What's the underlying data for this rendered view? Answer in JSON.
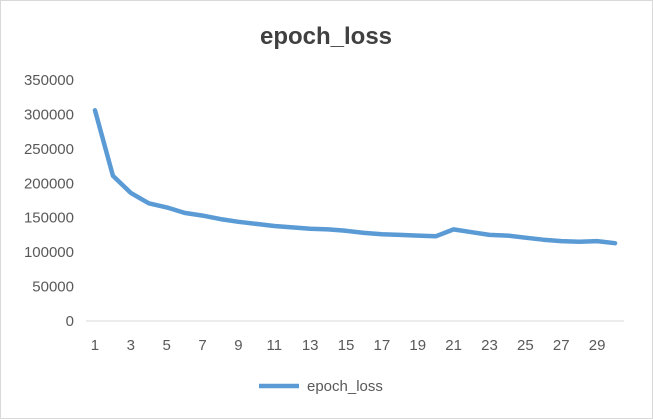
{
  "chart_data": {
    "type": "line",
    "title": "epoch_loss",
    "xlabel": "",
    "ylabel": "",
    "x": [
      1,
      2,
      3,
      4,
      5,
      6,
      7,
      8,
      9,
      10,
      11,
      12,
      13,
      14,
      15,
      16,
      17,
      18,
      19,
      20,
      21,
      22,
      23,
      24,
      25,
      26,
      27,
      28,
      29,
      30
    ],
    "x_tick_labels": [
      "1",
      "3",
      "5",
      "7",
      "9",
      "11",
      "13",
      "15",
      "17",
      "19",
      "21",
      "23",
      "25",
      "27",
      "29"
    ],
    "ylim": [
      0,
      350000
    ],
    "y_ticks": [
      0,
      50000,
      100000,
      150000,
      200000,
      250000,
      300000,
      350000
    ],
    "y_tick_labels": [
      "0",
      "50000",
      "100000",
      "150000",
      "200000",
      "250000",
      "300000",
      "350000"
    ],
    "grid": false,
    "legend_position": "bottom",
    "series": [
      {
        "name": "epoch_loss",
        "color": "#5b9bd5",
        "values": [
          306000,
          211000,
          186000,
          171000,
          165000,
          157000,
          153000,
          148000,
          144000,
          141000,
          138000,
          136000,
          134000,
          133000,
          131000,
          128000,
          126000,
          125000,
          124000,
          123000,
          133000,
          129000,
          125000,
          124000,
          121000,
          118000,
          116000,
          115000,
          116000,
          113000
        ]
      }
    ]
  }
}
